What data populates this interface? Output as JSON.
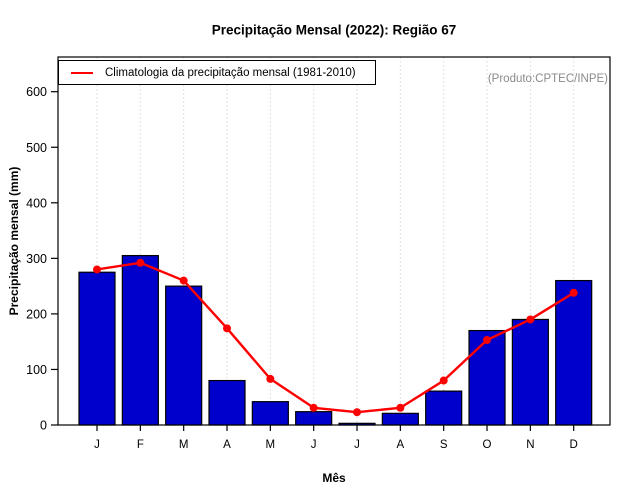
{
  "annotation": "(Produto:CPTEC/INPE)",
  "chart_data": {
    "type": "bar",
    "title": "Precipitação Mensal (2022): Região 67",
    "xlabel": "Mês",
    "ylabel": "Precipitação mensal (mm)",
    "categories": [
      "J",
      "F",
      "M",
      "A",
      "M",
      "J",
      "J",
      "A",
      "S",
      "O",
      "N",
      "D"
    ],
    "series": [
      {
        "name": "Precipitação mensal 2022",
        "type": "bar",
        "color": "#0000CC",
        "values": [
          275,
          305,
          250,
          80,
          42,
          24,
          3,
          21,
          61,
          170,
          190,
          260
        ]
      },
      {
        "name": "Climatologia da precipitação mensal (1981-2010)",
        "type": "line",
        "color": "#FF0000",
        "values": [
          280,
          292,
          260,
          174,
          83,
          31,
          23,
          31,
          80,
          153,
          190,
          238
        ]
      }
    ],
    "ylim": [
      0,
      660
    ],
    "yticks": [
      0,
      100,
      200,
      300,
      400,
      500,
      600
    ],
    "grid": "vertical-dotted",
    "legend_position": "top-left",
    "colors": {
      "bar_fill": "#0000CC",
      "bar_border": "#000000",
      "line": "#FF0000",
      "gridline": "#d8d8d8",
      "annotation_text": "#8a8a8a",
      "axis": "#000000"
    }
  }
}
